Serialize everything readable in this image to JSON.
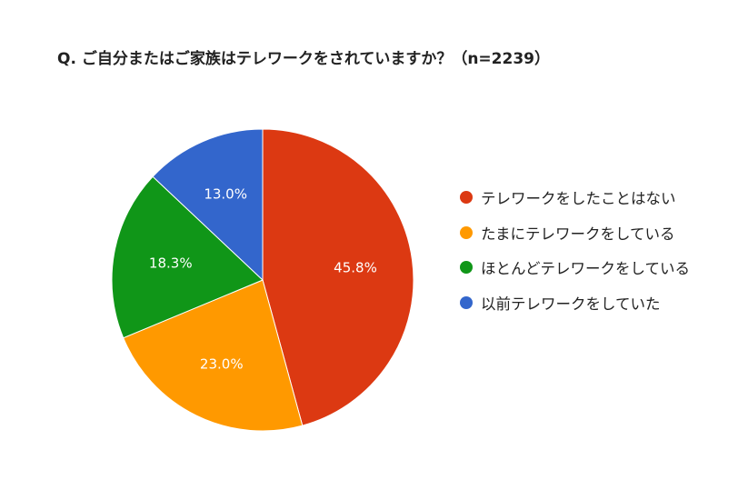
{
  "chart_data": {
    "type": "pie",
    "title": "Q. ご自分またはご家族はテレワークをされていますか？（n=2239）",
    "slices": [
      {
        "label": "テレワークをしたことはない",
        "value": 45.8,
        "display": "45.8%",
        "color": "#dc3912"
      },
      {
        "label": "たまにテレワークをしている",
        "value": 23.0,
        "display": "23.0%",
        "color": "#ff9900"
      },
      {
        "label": "ほとんどテレワークをしている",
        "value": 18.3,
        "display": "18.3%",
        "color": "#109618"
      },
      {
        "label": "以前テレワークをしていた",
        "value": 13.0,
        "display": "13.0%",
        "color": "#3366cc"
      }
    ],
    "start_angle": "12 o'clock",
    "direction": "clockwise",
    "legend_position": "right"
  }
}
